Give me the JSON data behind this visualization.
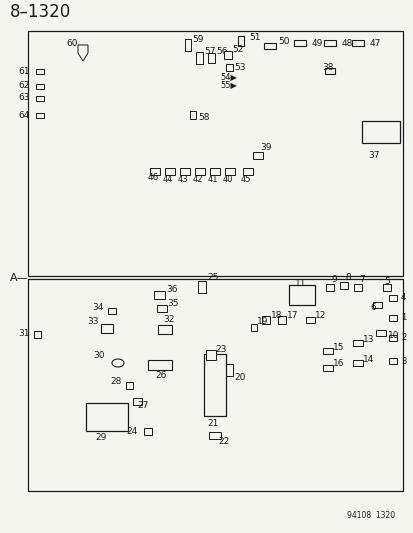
{
  "title": "8–1320",
  "bg_color": "#f5f5f0",
  "line_color": "#1a1a1a",
  "dashed_color": "#444444",
  "label_fontsize": 6.5,
  "title_fontsize": 11,
  "watermark": "94108  1320",
  "fig_width": 4.14,
  "fig_height": 5.33,
  "dpi": 100
}
